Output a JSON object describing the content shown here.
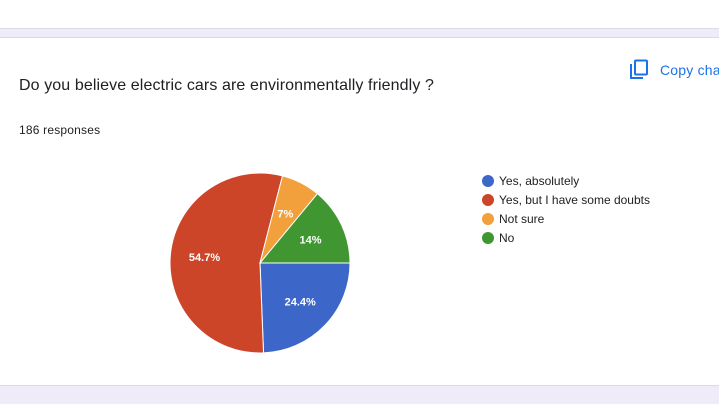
{
  "toolbar": {
    "copy_label": "Copy chart",
    "copy_icon": "copy-icon"
  },
  "question": {
    "title": "Do you believe electric cars are environmentally friendly ?",
    "responses": "186 responses"
  },
  "colors": {
    "accent": "#1a73e8",
    "page_background": "#f0ebf8"
  },
  "chart_data": {
    "type": "pie",
    "legend_position": "right",
    "categories": [
      "Yes, absolutely",
      "Yes, but I have some doubts",
      "Not sure",
      "No"
    ],
    "values": [
      24.4,
      54.7,
      7,
      14
    ],
    "labels": [
      "24.4%",
      "54.7%",
      "7%",
      "14%"
    ],
    "colors": [
      "#3d66c9",
      "#cc4529",
      "#f1a03b",
      "#409631"
    ]
  }
}
